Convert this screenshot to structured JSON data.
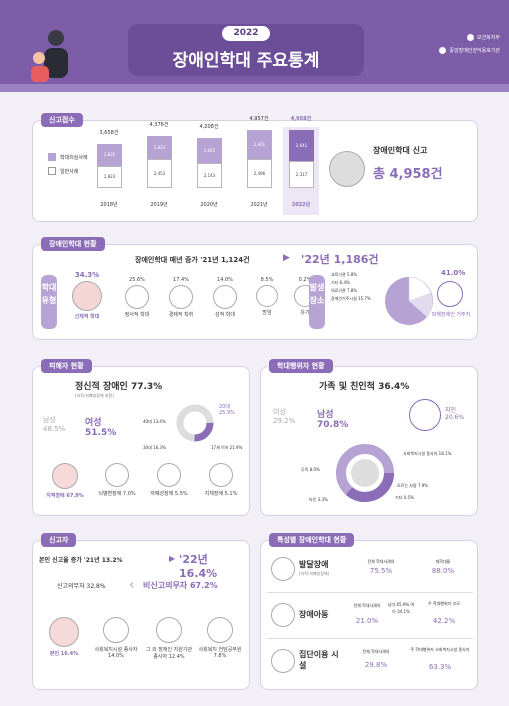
{
  "header": {
    "year": "2022",
    "title": "장애인학대 주요통계",
    "ministry": "보건복지부",
    "agency": "중앙장애인권익옹호기관"
  },
  "reports": {
    "tag": "신고접수",
    "legend": [
      "학대의심사례",
      "일반사례"
    ],
    "years": [
      "2018년",
      "2019년",
      "2020년",
      "2021년",
      "2022년"
    ],
    "totals": [
      "3,658건",
      "4,376건",
      "4,208건",
      "4,957건",
      "4,958건"
    ],
    "suspected": [
      "1,835",
      "1,923",
      "2,065",
      "2,461",
      "2,641"
    ],
    "general": [
      "1,823",
      "2,453",
      "2,143",
      "2,496",
      "2,317"
    ],
    "summary_title": "장애인학대 신고",
    "summary_total": "총 4,958건"
  },
  "status": {
    "tag": "장애인학대 현황",
    "headline": "장애인학대 매년 증가 '21년 1,124건",
    "current": "'22년 1,186건",
    "type_label": "학대유형",
    "types": [
      {
        "pct": "34.3%",
        "label": "신체적 학대"
      },
      {
        "pct": "25.6%",
        "label": "정서적 학대"
      },
      {
        "pct": "17.4%",
        "label": "경제적 착취"
      },
      {
        "pct": "14.0%",
        "label": "성적 학대"
      },
      {
        "pct": "8.5%",
        "label": "방임"
      },
      {
        "pct": "0.2%",
        "label": "유기"
      }
    ],
    "place_label": "발생장소",
    "places": [
      "교육기관 5.8%",
      "기타 6.4%",
      "의료기관 7.8%",
      "장애인거주시설 15.7%"
    ],
    "place_main_pct": "41.0%",
    "place_main_label": "피해장애인 거주지"
  },
  "victim": {
    "tag": "피해자 현황",
    "title": "정신적 장애인 77.3%",
    "subtitle": "(지적·자폐성장애 포함)",
    "male": "남성 48.5%",
    "female": "여성 51.5%",
    "ages": [
      "40대 13.4%",
      "30대 16.3%",
      "20대 25.9%",
      "17세 이하 21.9%"
    ],
    "disabilities": [
      "지적장애 67.9%",
      "뇌병변장애 7.0%",
      "자폐성장애 5.5%",
      "지체장애 5.1%"
    ]
  },
  "perp": {
    "tag": "학대행위자 현황",
    "title": "가족 및 친인척 36.4%",
    "female": "여성 29.2%",
    "male": "남성 70.8%",
    "acquaint": "지인 20.6%",
    "others": [
      "사회복지시설 종사자 18.1%",
      "무직 8.0%",
      "모르는 사람 7.9%",
      "타인 3.3%",
      "기타 0.5%"
    ]
  },
  "reporter": {
    "tag": "신고자",
    "headline": "본인 신고율 증가 '21년 13.2%",
    "current": "'22년 16.4%",
    "mandatory": "신고의무자 32.8%",
    "nonmandatory": "비신고의무자 67.2%",
    "items": [
      "본인 16.4%",
      "사회복지시설 종사자 14.0%",
      "그 외 장애인 지원기관 종사자 12.4%",
      "사회복지 전담공무원 7.8%"
    ]
  },
  "special": {
    "tag": "특성별 장애인학대 현황",
    "rows": [
      {
        "name": "발달장애",
        "sub": "(지적·자폐성장애)",
        "a_label": "전체 학대사례의",
        "a": "75.5%",
        "b_label": "재학대율",
        "b": "88.0%"
      },
      {
        "name": "장애아동",
        "sub": "",
        "a_label": "전체 학대사례의",
        "a": "21.0%",
        "mid": "남아 65.9% 여아 34.1%",
        "b_label": "주 학대행위자 부모",
        "b": "42.2%"
      },
      {
        "name": "집단이용 시설",
        "sub": "",
        "a_label": "전체 학대사례의",
        "a": "29.8%",
        "b_label": "주 학대행위자 사회복지시설 종사자",
        "b": "63.3%"
      }
    ]
  },
  "colors": {
    "purple": "#8b6cb7",
    "light": "#b6a2d3",
    "bg": "#f2f0f6"
  }
}
